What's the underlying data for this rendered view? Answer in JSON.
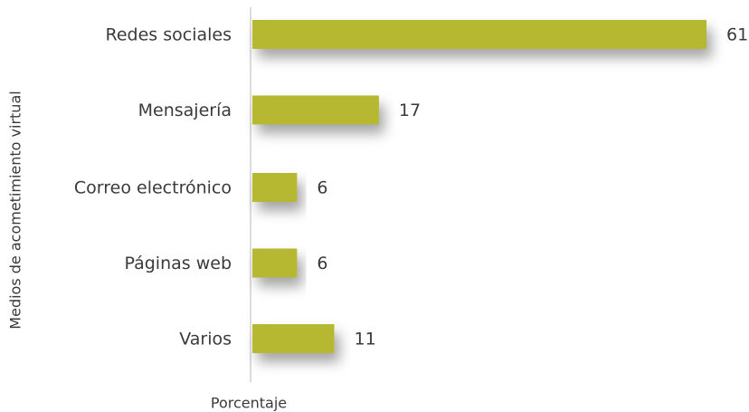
{
  "chart_data": {
    "type": "bar",
    "orientation": "horizontal",
    "categories": [
      "Redes sociales",
      "Mensajería",
      "Correo electrónico",
      "Páginas web",
      "Varios"
    ],
    "values": [
      61,
      17,
      6,
      6,
      11
    ],
    "color": "#b6b832",
    "xlabel": "Porcentaje",
    "ylabel": "Medios de acometimiento virtual"
  }
}
